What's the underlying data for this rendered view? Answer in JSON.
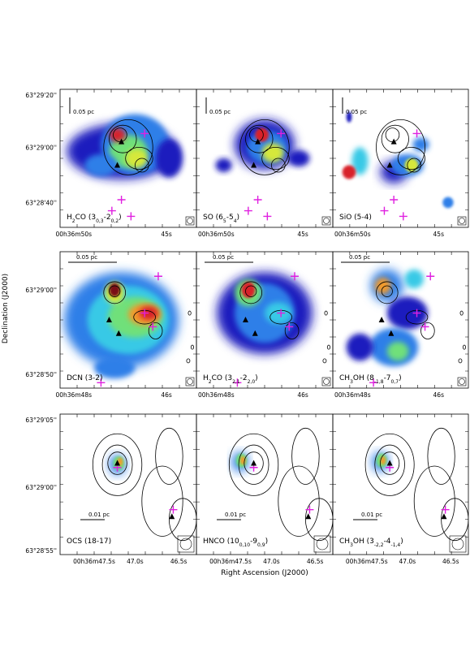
{
  "figure": {
    "y_axis_label": "Declination (J2000)",
    "x_axis_label": "Right Ascension (J2000)"
  },
  "chart_data": {
    "type": "heatmap",
    "rows": [
      {
        "y_ticks": [
          "63°29'20''",
          "63°29'00''",
          "63°28'40''"
        ],
        "x_ticks": [
          "00h36m50s",
          "45s"
        ],
        "scale_bar": "0.05 pc",
        "panels": [
          {
            "label_parts": [
              "H",
              "2",
              "CO (3",
              "0,3",
              "-2",
              "0,2",
              ")"
            ]
          },
          {
            "label_parts": [
              "SO (6",
              "5",
              "-5",
              "4",
              ")"
            ]
          },
          {
            "label_parts": [
              "SiO (5-4)"
            ]
          }
        ]
      },
      {
        "y_ticks": [
          "63°29'00''",
          "63°28'50''"
        ],
        "x_ticks": [
          "00h36m48s",
          "46s"
        ],
        "scale_bar": "0.05 pc",
        "panels": [
          {
            "label_parts": [
              "DCN (3-2)"
            ]
          },
          {
            "label_parts": [
              "H",
              "2",
              "CO (3",
              "2,1",
              "-2",
              "2,0",
              ")"
            ]
          },
          {
            "label_parts": [
              "CH",
              "3",
              "OH (8",
              "-1,8",
              "-7",
              "0,7",
              ")"
            ]
          }
        ]
      },
      {
        "y_ticks": [
          "63°29'05''",
          "63°29'00''",
          "63°28'55''"
        ],
        "x_ticks": [
          "00h36m47.5s",
          "47.0s",
          "46.5s"
        ],
        "scale_bar": "0.01 pc",
        "panels": [
          {
            "label_parts": [
              "OCS (18-17)"
            ]
          },
          {
            "label_parts": [
              "HNCO (10",
              "0,10",
              "-9",
              "0,9",
              ")"
            ]
          },
          {
            "label_parts": [
              "CH",
              "3",
              "OH (3",
              "-2,2",
              "-4",
              "-1,4",
              ")"
            ]
          }
        ]
      }
    ],
    "colormap": [
      "#1d1dbe",
      "#2f7fe8",
      "#39c9e6",
      "#6fe07a",
      "#d6e83a",
      "#f29a2a",
      "#d8232a",
      "#7a0a14"
    ],
    "marker_colors": {
      "plus": "#e020e0",
      "triangle": "#000000",
      "contour": "#000000"
    }
  }
}
